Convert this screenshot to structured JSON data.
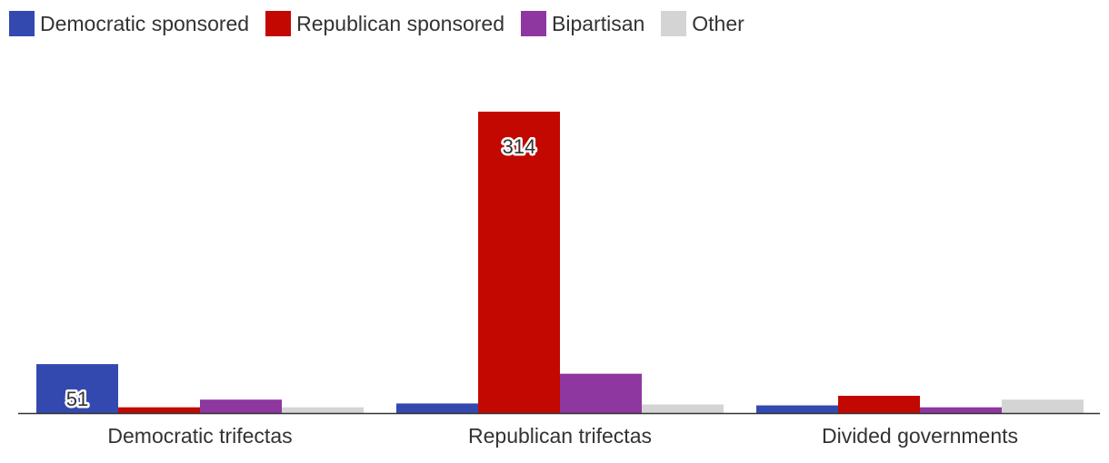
{
  "chart_data": {
    "type": "bar",
    "title": "",
    "xlabel": "",
    "ylabel": "",
    "categories": [
      "Democratic trifectas",
      "Republican trifectas",
      "Divided governments"
    ],
    "series": [
      {
        "name": "Democratic sponsored",
        "color": "#3449b0",
        "values": [
          51,
          10,
          8
        ],
        "labels": [
          "51",
          "",
          ""
        ]
      },
      {
        "name": "Republican sponsored",
        "color": "#c20800",
        "values": [
          6,
          314,
          18
        ],
        "labels": [
          "",
          "314",
          ""
        ]
      },
      {
        "name": "Bipartisan",
        "color": "#8e37a0",
        "values": [
          14,
          41,
          6
        ],
        "labels": [
          "",
          "",
          ""
        ]
      },
      {
        "name": "Other",
        "color": "#d4d4d4",
        "values": [
          6,
          9,
          14
        ],
        "labels": [
          "",
          "",
          ""
        ]
      }
    ],
    "ylim": [
      0,
      314
    ],
    "grid": false,
    "legend_position": "top-left"
  }
}
